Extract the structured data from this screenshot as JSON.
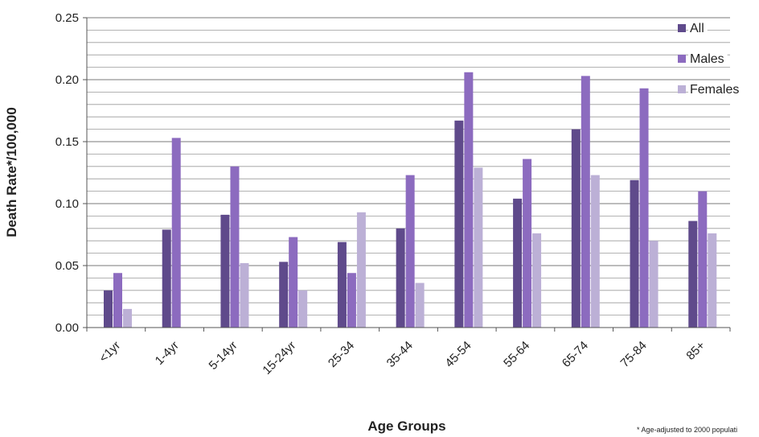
{
  "chart_data": {
    "type": "bar",
    "xlabel": "Age Groups",
    "ylabel": "Death Rate*/100,000",
    "footnote": "* Age-adjusted to 2000 populati",
    "ylim": [
      0,
      0.25
    ],
    "yticks": [
      "0.00",
      "0.05",
      "0.10",
      "0.15",
      "0.20",
      "0.25"
    ],
    "grid": true,
    "legend_position": "top-right",
    "categories": [
      "<1yr",
      "1-4yr",
      "5-14yr",
      "15-24yr",
      "25-34",
      "35-44",
      "45-54",
      "55-64",
      "65-74",
      "75-84",
      "85+"
    ],
    "series": [
      {
        "name": "All",
        "color": "#5f4a8b",
        "values": [
          0.03,
          0.079,
          0.091,
          0.053,
          0.069,
          0.08,
          0.167,
          0.104,
          0.16,
          0.119,
          0.086
        ]
      },
      {
        "name": "Males",
        "color": "#8c6bbf",
        "values": [
          0.044,
          0.153,
          0.13,
          0.073,
          0.044,
          0.123,
          0.206,
          0.136,
          0.203,
          0.193,
          0.11
        ]
      },
      {
        "name": "Females",
        "color": "#bcb0d6",
        "values": [
          0.015,
          0.0,
          0.052,
          0.03,
          0.093,
          0.036,
          0.129,
          0.076,
          0.123,
          0.07,
          0.076
        ]
      }
    ]
  }
}
